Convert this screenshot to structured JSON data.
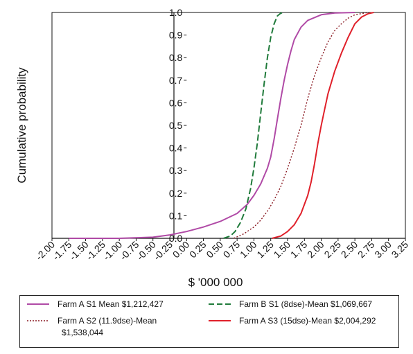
{
  "chart_data": {
    "type": "line",
    "xlabel": "$ '000 000",
    "ylabel": "Cumulative probability",
    "xlim": [
      -2.0,
      3.25
    ],
    "ylim": [
      0,
      1.0
    ],
    "x_ticks": [
      "-2.00",
      "-1.75",
      "-1.50",
      "-1.25",
      "-1.00",
      "-0.75",
      "-0.50",
      "-0.25",
      "0.00",
      "0.25",
      "0.50",
      "0.75",
      "1.00",
      "1.25",
      "1.50",
      "1.75",
      "2.00",
      "2.25",
      "2.50",
      "2.75",
      "3.00",
      "3.25"
    ],
    "y_ticks": [
      "0.0",
      "0.1",
      "0.2",
      "0.3",
      "0.4",
      "0.5",
      "0.6",
      "0.7",
      "0.8",
      "0.9",
      "1.0"
    ],
    "grid": false,
    "legend_position": "bottom",
    "series": [
      {
        "name": "Farm A S1 Mean $1,212,427",
        "color": "#b04aa6",
        "style": "solid",
        "x": [
          -1.75,
          -1.5,
          -1.0,
          -0.5,
          -0.25,
          0.0,
          0.25,
          0.5,
          0.75,
          0.9,
          1.0,
          1.1,
          1.2,
          1.25,
          1.3,
          1.35,
          1.4,
          1.45,
          1.5,
          1.55,
          1.6,
          1.7,
          1.8,
          2.0,
          2.2,
          2.5
        ],
        "y": [
          0.0,
          0.0,
          0.0,
          0.005,
          0.015,
          0.03,
          0.05,
          0.075,
          0.11,
          0.15,
          0.19,
          0.24,
          0.31,
          0.36,
          0.44,
          0.53,
          0.62,
          0.7,
          0.77,
          0.83,
          0.88,
          0.935,
          0.965,
          0.99,
          0.998,
          1.0
        ]
      },
      {
        "name": "Farm B S1 (8dse)-Mean $1,069,667",
        "color": "#1f7a3a",
        "style": "dashed",
        "x": [
          0.55,
          0.65,
          0.72,
          0.8,
          0.88,
          0.95,
          1.0,
          1.05,
          1.1,
          1.15,
          1.2,
          1.25,
          1.3,
          1.35,
          1.4,
          1.45
        ],
        "y": [
          0.0,
          0.01,
          0.03,
          0.07,
          0.13,
          0.22,
          0.31,
          0.42,
          0.55,
          0.68,
          0.8,
          0.89,
          0.95,
          0.985,
          0.997,
          1.0
        ]
      },
      {
        "name": "Farm A S2 (11.9dse)-Mean $1,538,044",
        "color": "#8a1a22",
        "style": "dotted",
        "x": [
          0.7,
          0.85,
          1.0,
          1.1,
          1.2,
          1.3,
          1.4,
          1.5,
          1.6,
          1.7,
          1.75,
          1.8,
          1.9,
          2.0,
          2.1,
          2.2,
          2.3,
          2.4,
          2.5,
          2.7
        ],
        "y": [
          0.0,
          0.02,
          0.05,
          0.08,
          0.12,
          0.17,
          0.23,
          0.31,
          0.4,
          0.5,
          0.56,
          0.62,
          0.72,
          0.8,
          0.87,
          0.92,
          0.95,
          0.975,
          0.99,
          1.0
        ]
      },
      {
        "name": "Farm A S3 (15dse)-Mean $2,004,292",
        "color": "#e0202a",
        "style": "solid",
        "x": [
          1.27,
          1.4,
          1.5,
          1.6,
          1.7,
          1.8,
          1.85,
          1.9,
          1.95,
          2.0,
          2.05,
          2.1,
          2.2,
          2.3,
          2.4,
          2.5,
          2.6,
          2.7,
          2.78
        ],
        "y": [
          0.0,
          0.01,
          0.03,
          0.06,
          0.11,
          0.19,
          0.25,
          0.33,
          0.42,
          0.5,
          0.57,
          0.64,
          0.74,
          0.82,
          0.89,
          0.95,
          0.98,
          0.995,
          1.0
        ]
      }
    ]
  },
  "legend": {
    "item1": "Farm A S1 Mean $1,212,427",
    "item2": "Farm B S1  (8dse)-Mean $1,069,667",
    "item3_line1": "Farm A S2 (11.9dse)-Mean",
    "item3_line2": "$1,538,044",
    "item4": "Farm A S3 (15dse)-Mean $2,004,292"
  }
}
